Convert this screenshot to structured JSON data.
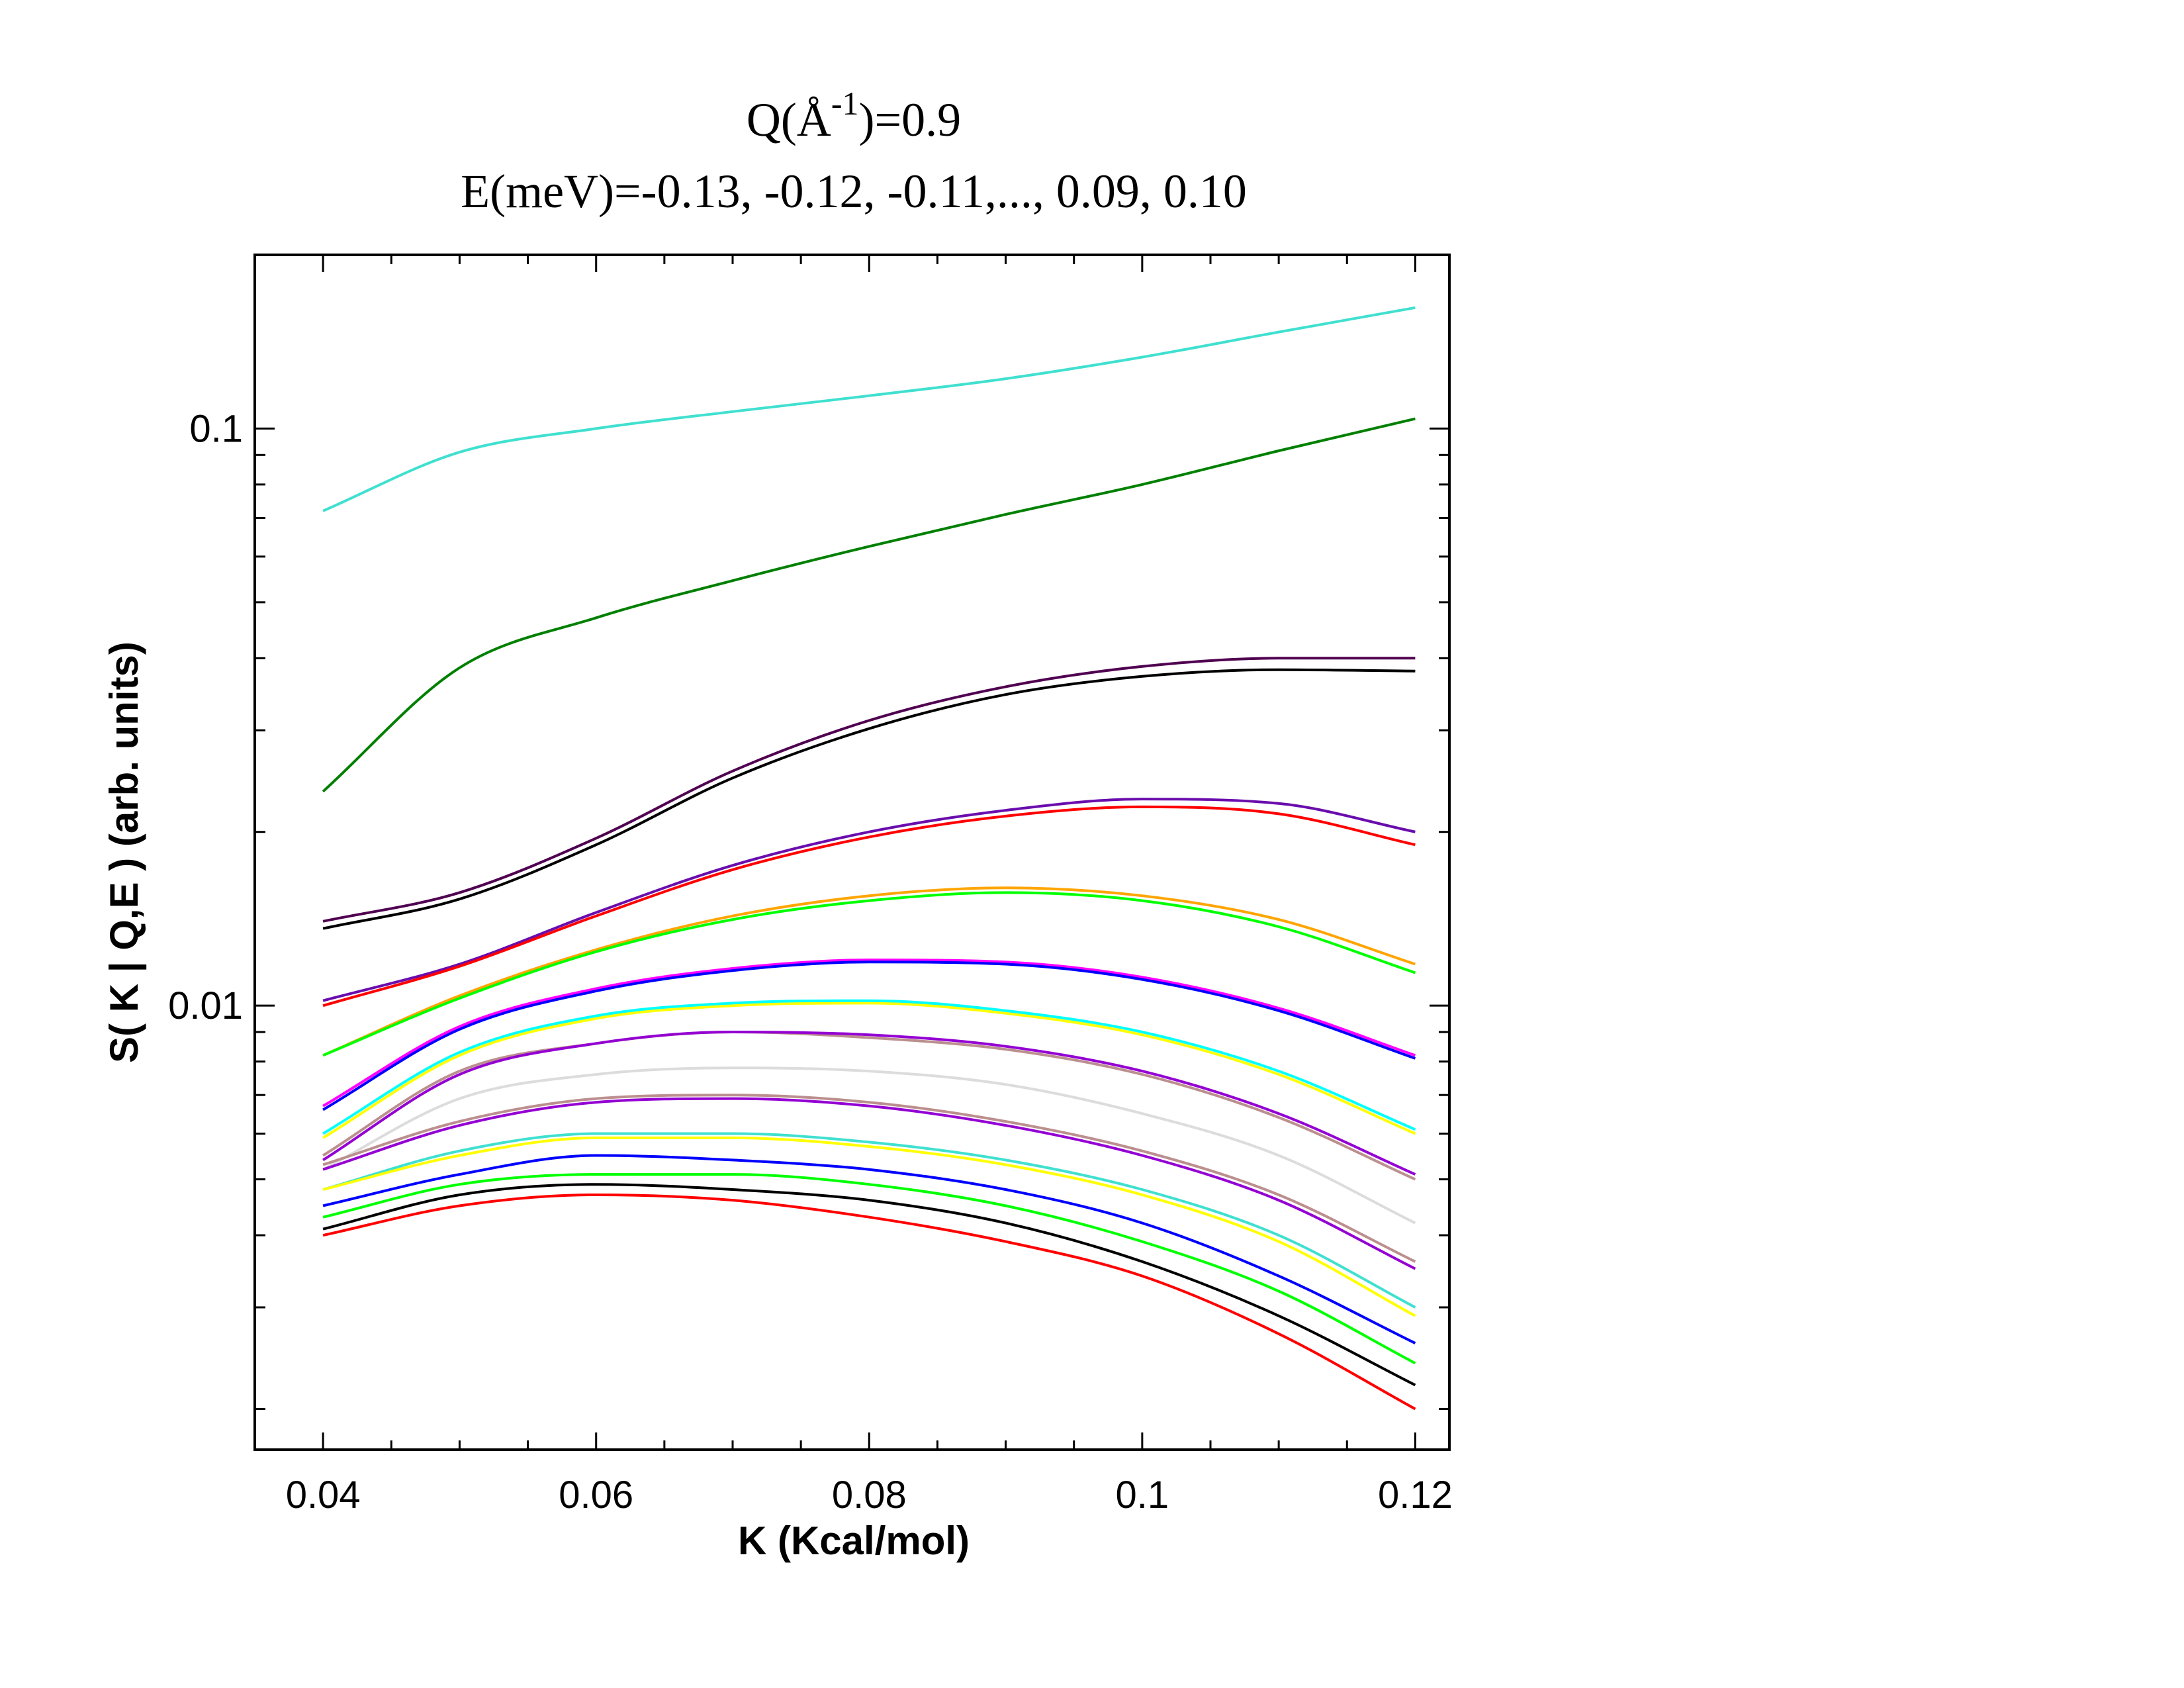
{
  "chart_data": {
    "type": "line",
    "title_lines": [
      {
        "prefix": "Q(",
        "unit_base": "Å",
        "unit_sup": "-1",
        "suffix": ")=0.9"
      },
      {
        "text": "E(meV)=-0.13, -0.12, -0.11,..., 0.09, 0.10"
      }
    ],
    "xlabel": "K (Kcal/mol)",
    "ylabel": "S( K | Q,E )  (arb. units)",
    "xlim": [
      0.035,
      0.1225
    ],
    "ylim": [
      0.0017,
      0.2
    ],
    "yscale": "log",
    "grid": false,
    "legend": "none",
    "x_ticks": [
      "0.04",
      "0.06",
      "0.08",
      "0.1",
      "0.12"
    ],
    "y_ticks": [
      "0.01",
      "0.1"
    ],
    "x": [
      0.04,
      0.05,
      0.06,
      0.07,
      0.08,
      0.09,
      0.1,
      0.11,
      0.12
    ],
    "series": [
      {
        "color": "#40e0d0",
        "values": [
          0.072,
          0.091,
          0.1,
          0.107,
          0.114,
          0.122,
          0.133,
          0.147,
          0.162
        ]
      },
      {
        "color": "#008000",
        "values": [
          0.0235,
          0.0385,
          0.047,
          0.0545,
          0.0625,
          0.071,
          0.08,
          0.0915,
          0.104
        ]
      },
      {
        "color": "#500050",
        "values": [
          0.014,
          0.0157,
          0.0195,
          0.0255,
          0.0312,
          0.0357,
          0.0387,
          0.04,
          0.04
        ]
      },
      {
        "color": "#000000",
        "values": [
          0.0136,
          0.0153,
          0.019,
          0.0248,
          0.0302,
          0.0346,
          0.0372,
          0.0382,
          0.038
        ]
      },
      {
        "color": "#6a0dad",
        "values": [
          0.0102,
          0.0118,
          0.0145,
          0.0175,
          0.02,
          0.0218,
          0.0228,
          0.0224,
          0.02
        ]
      },
      {
        "color": "#ff0000",
        "values": [
          0.01,
          0.0117,
          0.0143,
          0.0172,
          0.0196,
          0.0213,
          0.0221,
          0.0215,
          0.019
        ]
      },
      {
        "color": "#ffa500",
        "values": [
          0.0082,
          0.0104,
          0.0125,
          0.0143,
          0.0155,
          0.016,
          0.0155,
          0.0141,
          0.0118
        ]
      },
      {
        "color": "#00ff00",
        "values": [
          0.0082,
          0.0103,
          0.0124,
          0.0141,
          0.0152,
          0.0157,
          0.0152,
          0.0137,
          0.0114
        ]
      },
      {
        "color": "#ff00ff",
        "values": [
          0.0067,
          0.0092,
          0.0107,
          0.0116,
          0.012,
          0.0119,
          0.0112,
          0.0099,
          0.0082
        ]
      },
      {
        "color": "#0000ff",
        "values": [
          0.0066,
          0.0091,
          0.0106,
          0.0115,
          0.0119,
          0.0118,
          0.0111,
          0.0098,
          0.0081
        ]
      },
      {
        "color": "#ffff00",
        "values": [
          0.0059,
          0.0082,
          0.0095,
          0.01,
          0.0101,
          0.0097,
          0.0089,
          0.0076,
          0.006
        ]
      },
      {
        "color": "#00ffff",
        "values": [
          0.006,
          0.0083,
          0.0096,
          0.0101,
          0.0102,
          0.0098,
          0.009,
          0.0077,
          0.0061
        ]
      },
      {
        "color": "#bc8f8f",
        "values": [
          0.0055,
          0.0077,
          0.0086,
          0.009,
          0.0088,
          0.0084,
          0.0076,
          0.0064,
          0.005
        ]
      },
      {
        "color": "#9400d3",
        "values": [
          0.0054,
          0.0076,
          0.0086,
          0.009,
          0.0089,
          0.0085,
          0.0077,
          0.0065,
          0.0051
        ]
      },
      {
        "color": "#dcdcdc",
        "values": [
          0.0052,
          0.0069,
          0.0076,
          0.0078,
          0.0077,
          0.0073,
          0.0065,
          0.0055,
          0.0042
        ]
      },
      {
        "color": "#bc8f8f",
        "values": [
          0.0053,
          0.0063,
          0.0069,
          0.007,
          0.0068,
          0.0063,
          0.0056,
          0.0047,
          0.0036
        ]
      },
      {
        "color": "#9400d3",
        "values": [
          0.0052,
          0.0062,
          0.0068,
          0.0069,
          0.0067,
          0.0062,
          0.0055,
          0.0046,
          0.0035
        ]
      },
      {
        "color": "#40e0d0",
        "values": [
          0.0048,
          0.0056,
          0.006,
          0.006,
          0.0058,
          0.0054,
          0.0048,
          0.004,
          0.003
        ]
      },
      {
        "color": "#ffff00",
        "values": [
          0.0048,
          0.0055,
          0.0059,
          0.0059,
          0.0057,
          0.0053,
          0.0047,
          0.0039,
          0.0029
        ]
      },
      {
        "color": "#0000ff",
        "values": [
          0.0045,
          0.0051,
          0.0055,
          0.0054,
          0.0052,
          0.0048,
          0.0042,
          0.0034,
          0.0026
        ]
      },
      {
        "color": "#00ff00",
        "values": [
          0.0043,
          0.0049,
          0.0051,
          0.0051,
          0.0049,
          0.0045,
          0.0039,
          0.0032,
          0.0024
        ]
      },
      {
        "color": "#000000",
        "values": [
          0.0041,
          0.0047,
          0.0049,
          0.0048,
          0.0046,
          0.0042,
          0.0036,
          0.0029,
          0.0022
        ]
      },
      {
        "color": "#ff0000",
        "values": [
          0.004,
          0.0045,
          0.0047,
          0.0046,
          0.0043,
          0.0039,
          0.0034,
          0.0027,
          0.002
        ]
      }
    ]
  }
}
